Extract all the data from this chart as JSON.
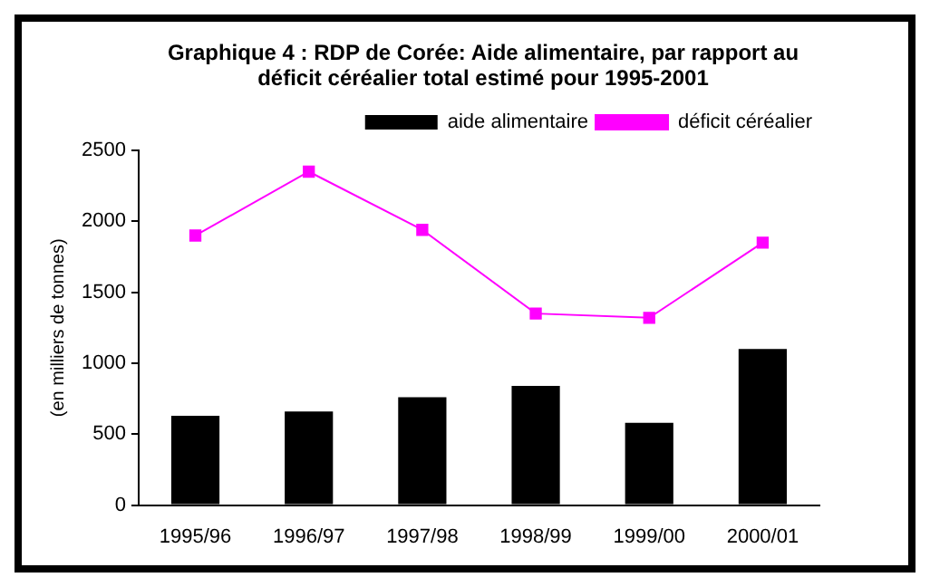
{
  "chart_data": {
    "type": "bar",
    "title": "Graphique 4 : RDP de Corée: Aide alimentaire, par rapport au déficit céréalier total estimé pour 1995-2001",
    "ylabel": "(en milliers de tonnes)",
    "categories": [
      "1995/96",
      "1996/97",
      "1997/98",
      "1998/99",
      "1999/00",
      "2000/01"
    ],
    "series": [
      {
        "name": "aide alimentaire",
        "color": "#000000",
        "values": [
          630,
          660,
          760,
          840,
          580,
          1100
        ]
      },
      {
        "name": "déficit céréalier",
        "type": "line",
        "color": "#ff00ff",
        "values": [
          1900,
          2350,
          1940,
          1350,
          1320,
          1850
        ]
      }
    ],
    "ylim": [
      0,
      2500
    ],
    "yticks": [
      0,
      500,
      1000,
      1500,
      2000,
      2500
    ],
    "grid": false,
    "legend": "top right",
    "marker": "square"
  }
}
